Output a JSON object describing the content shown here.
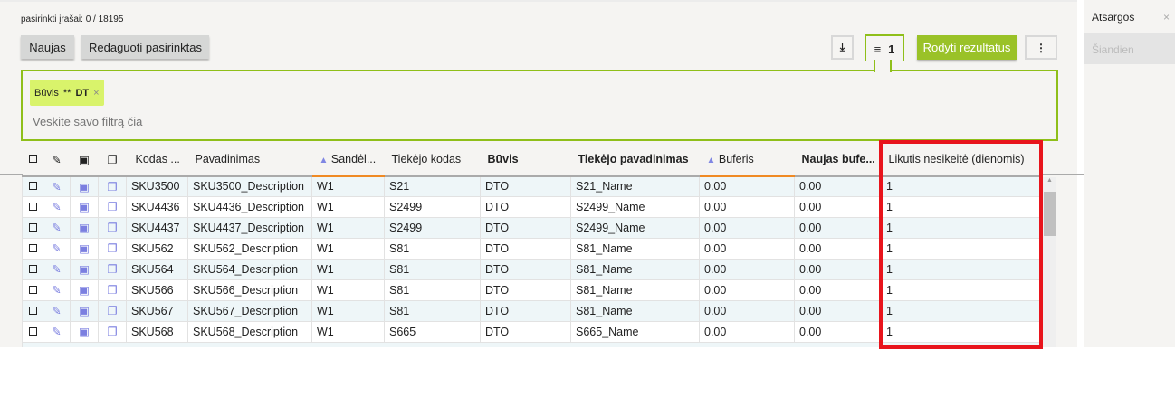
{
  "header": {
    "selected_text": "pasirinkti įrašai: 0 / 18195",
    "new_label": "Naujas",
    "edit_selected_label": "Redaguoti pasirinktas",
    "filter_count": "1",
    "show_results_label": "Rodyti rezultatus"
  },
  "filter": {
    "chip_field": "Būvis",
    "chip_op": "**",
    "chip_value": "DT",
    "placeholder": "Veskite savo filtrą čia"
  },
  "side": {
    "tab_title": "Atsargos",
    "item": "Šiandien"
  },
  "table": {
    "columns": [
      "Kodas ...",
      "Pavadinimas",
      "Sandėl...",
      "Tiekėjo kodas",
      "Būvis",
      "Tiekėjo pavadinimas",
      "Buferis",
      "Naujas bufe...",
      "Likutis nesikeitė (dienomis)"
    ],
    "rows": [
      [
        "SKU3500",
        "SKU3500_Description",
        "W1",
        "S21",
        "DTO",
        "S21_Name",
        "0.00",
        "0.00",
        "1"
      ],
      [
        "SKU4436",
        "SKU4436_Description",
        "W1",
        "S2499",
        "DTO",
        "S2499_Name",
        "0.00",
        "0.00",
        "1"
      ],
      [
        "SKU4437",
        "SKU4437_Description",
        "W1",
        "S2499",
        "DTO",
        "S2499_Name",
        "0.00",
        "0.00",
        "1"
      ],
      [
        "SKU562",
        "SKU562_Description",
        "W1",
        "S81",
        "DTO",
        "S81_Name",
        "0.00",
        "0.00",
        "1"
      ],
      [
        "SKU564",
        "SKU564_Description",
        "W1",
        "S81",
        "DTO",
        "S81_Name",
        "0.00",
        "0.00",
        "1"
      ],
      [
        "SKU566",
        "SKU566_Description",
        "W1",
        "S81",
        "DTO",
        "S81_Name",
        "0.00",
        "0.00",
        "1"
      ],
      [
        "SKU567",
        "SKU567_Description",
        "W1",
        "S81",
        "DTO",
        "S81_Name",
        "0.00",
        "0.00",
        "1"
      ],
      [
        "SKU568",
        "SKU568_Description",
        "W1",
        "S665",
        "DTO",
        "S665_Name",
        "0.00",
        "0.00",
        "1"
      ]
    ]
  },
  "colors": {
    "accent": "#8fbf1a",
    "highlight": "#e8141c",
    "chip": "#d9f36b",
    "icon": "#7b7fe0"
  }
}
